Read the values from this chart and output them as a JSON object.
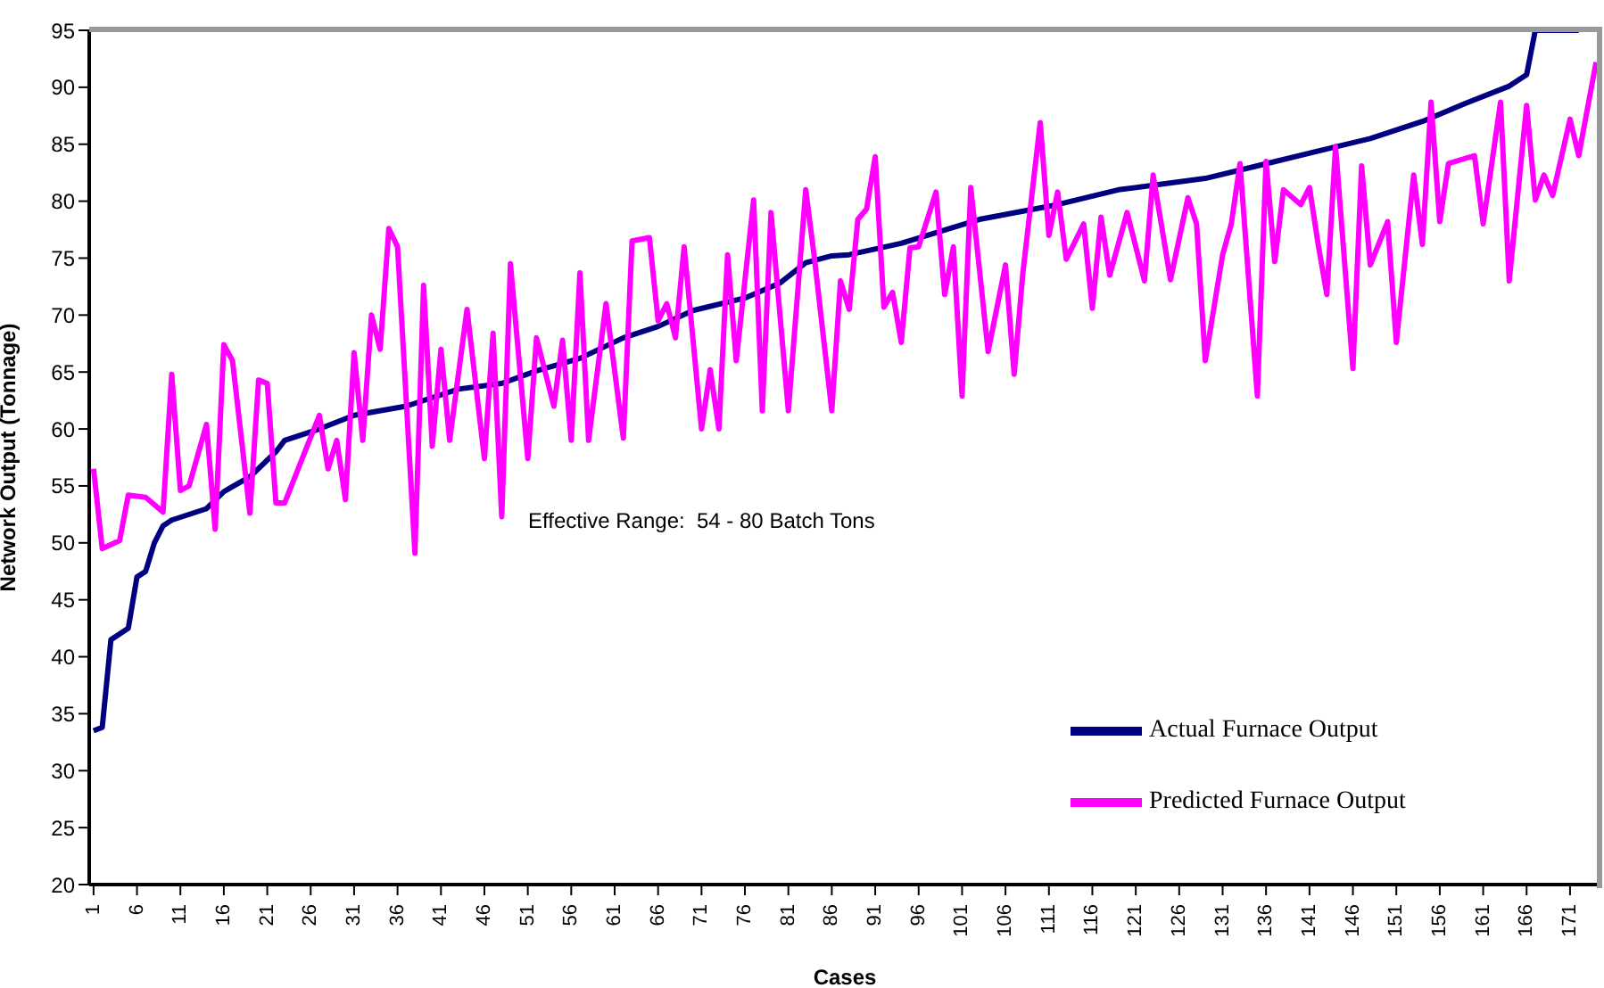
{
  "chart_data": {
    "type": "line",
    "xlabel": "Cases",
    "ylabel": "Network Output (Tonnage)",
    "xlim": [
      0.5,
      174.5
    ],
    "xticks": [
      1,
      6,
      11,
      16,
      21,
      26,
      31,
      36,
      41,
      46,
      51,
      56,
      61,
      66,
      71,
      76,
      81,
      86,
      91,
      96,
      101,
      106,
      111,
      116,
      121,
      126,
      131,
      136,
      141,
      146,
      151,
      156,
      161,
      166,
      171
    ],
    "ylim": [
      20,
      95
    ],
    "yticks": [
      20,
      25,
      30,
      35,
      40,
      45,
      50,
      55,
      60,
      65,
      70,
      75,
      80,
      85,
      90,
      95
    ],
    "legend": "bottom right",
    "annotations": [
      "Effective Range:  54 - 80 Batch Tons"
    ],
    "series": [
      {
        "name": "Actual Furnace Output",
        "color": "#000080",
        "x": [
          1,
          2,
          3,
          4,
          5,
          6,
          7,
          8,
          9,
          10,
          14,
          16,
          19,
          22,
          23,
          27,
          31,
          37,
          43,
          48,
          52,
          57,
          62,
          66,
          70,
          76,
          80,
          83,
          86,
          88,
          94,
          103,
          112,
          119,
          129,
          135,
          142,
          148,
          154,
          159,
          164,
          166,
          167,
          172
        ],
        "values": [
          33.5,
          33.8,
          41.5,
          42,
          42.5,
          47,
          47.5,
          50,
          51.5,
          52,
          53,
          54.5,
          55.8,
          58,
          59,
          60,
          61.2,
          62,
          63.5,
          64,
          65.1,
          66.2,
          68,
          69,
          70.4,
          71.5,
          72.8,
          74.6,
          75.2,
          75.3,
          76.3,
          78.4,
          79.7,
          81,
          82,
          83.1,
          84.4,
          85.5,
          87,
          88.6,
          90.1,
          91.1,
          95,
          95
        ]
      },
      {
        "name": "Predicted Furnace Output",
        "color": "#ff00ff",
        "x": [
          1,
          2,
          4,
          5,
          7,
          9,
          10,
          11,
          12,
          14,
          15,
          16,
          17,
          19,
          20,
          21,
          22,
          23,
          27,
          28,
          29,
          30,
          31,
          32,
          33,
          34,
          35,
          36,
          38,
          39,
          40,
          41,
          42,
          44,
          46,
          47,
          48,
          49,
          51,
          52,
          54,
          55,
          56,
          57,
          58,
          60,
          62,
          63,
          65,
          66,
          67,
          68,
          69,
          71,
          72,
          73,
          74,
          75,
          77,
          78,
          79,
          81,
          83,
          84,
          86,
          87,
          88,
          89,
          90,
          91,
          92,
          93,
          94,
          95,
          96,
          98,
          99,
          100,
          101,
          102,
          104,
          106,
          107,
          108,
          110,
          111,
          112,
          113,
          115,
          116,
          117,
          118,
          120,
          122,
          123,
          125,
          127,
          128,
          129,
          131,
          132,
          133,
          135,
          136,
          137,
          138,
          140,
          141,
          142,
          143,
          144,
          146,
          147,
          148,
          150,
          151,
          153,
          154,
          155,
          156,
          157,
          160,
          161,
          163,
          164,
          166,
          167,
          168,
          169,
          171,
          172,
          174
        ],
        "values": [
          56.5,
          49.5,
          50.2,
          54.2,
          54,
          52.7,
          64.8,
          54.6,
          55,
          60.4,
          51.2,
          67.4,
          66,
          52.6,
          64.3,
          64,
          53.5,
          53.5,
          61.2,
          56.5,
          59,
          53.8,
          66.7,
          59,
          70,
          67,
          77.6,
          76,
          49.1,
          72.6,
          58.5,
          67,
          59,
          70.5,
          57.4,
          68.4,
          52.3,
          74.5,
          57.4,
          68,
          62,
          67.8,
          59,
          73.7,
          59,
          71,
          59.2,
          76.5,
          76.8,
          69.5,
          71,
          68,
          76,
          60,
          65.2,
          60,
          75.3,
          66,
          80.1,
          61.6,
          79,
          61.6,
          81,
          75,
          61.6,
          73,
          70.5,
          78.4,
          79.3,
          83.9,
          70.7,
          72,
          67.6,
          75.9,
          76,
          80.8,
          71.8,
          76,
          62.9,
          81.2,
          66.8,
          74.4,
          64.8,
          73.7,
          86.9,
          77,
          80.8,
          74.9,
          78,
          70.6,
          78.6,
          73.5,
          79,
          73,
          82.3,
          73.1,
          80.3,
          78,
          66,
          75.3,
          78,
          83.3,
          62.9,
          83.5,
          74.7,
          81,
          79.7,
          81.2,
          76.2,
          71.8,
          84.8,
          65.3,
          83.1,
          74.4,
          78.2,
          67.6,
          82.3,
          76.2,
          88.7,
          78.2,
          83.3,
          84,
          78,
          88.7,
          73,
          88.4,
          80.1,
          82.3,
          80.5,
          87.2,
          84,
          92.2
        ]
      }
    ]
  }
}
